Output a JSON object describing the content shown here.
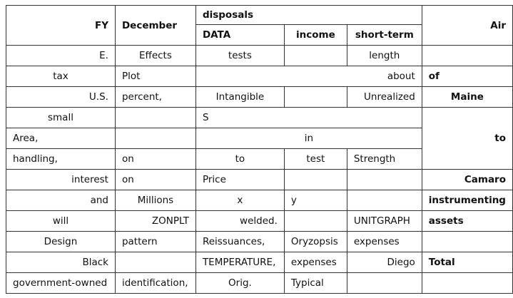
{
  "header": {
    "fy": "FY",
    "december": "December",
    "disposals": "disposals",
    "data": "DATA",
    "income": "income",
    "short_term": "short-term",
    "air": "Air"
  },
  "rows": [
    [
      "E.",
      "Effects",
      "tests",
      "",
      "length",
      ""
    ],
    [
      "tax",
      "Plot",
      "about",
      "of"
    ],
    [
      "U.S.",
      "percent,",
      "Intangible",
      "",
      "Unrealized",
      "Maine"
    ],
    [
      "small",
      "",
      "S"
    ],
    [
      "Area,",
      "",
      "in",
      "to"
    ],
    [
      "handling,",
      "on",
      "to",
      "test",
      "Strength"
    ],
    [
      "interest",
      "on",
      "Price",
      "",
      "",
      "Camaro"
    ],
    [
      "and",
      "Millions",
      "x",
      "y",
      "",
      "instrumenting"
    ],
    [
      "will",
      "ZONPLT",
      "welded.",
      "",
      "UNITGRAPH",
      "assets"
    ],
    [
      "Design",
      "pattern",
      "Reissuances,",
      "Oryzopsis",
      "expenses",
      ""
    ],
    [
      "Black",
      "",
      "TEMPERATURE,",
      "expenses",
      "Diego",
      "Total"
    ],
    [
      "government-owned",
      "identification,",
      "Orig.",
      "Typical",
      "",
      ""
    ]
  ]
}
